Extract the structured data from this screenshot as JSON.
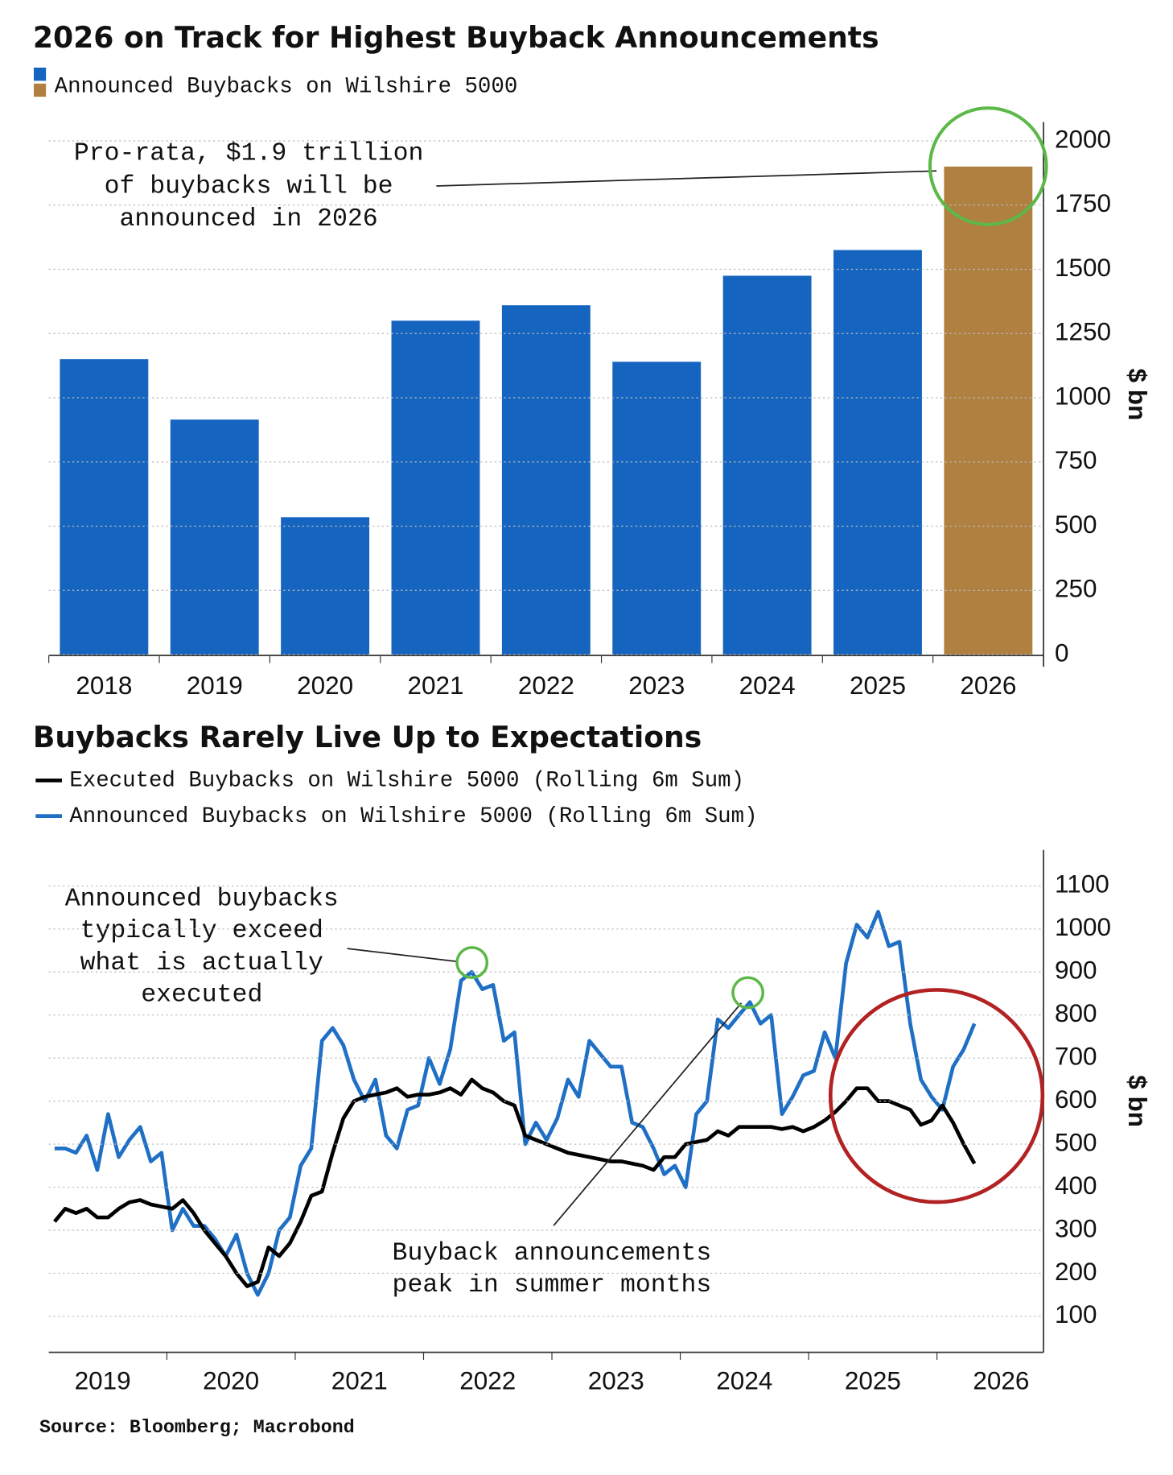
{
  "chart_data": [
    {
      "type": "bar",
      "title": "2026 on Track for Highest Buyback Announcements",
      "categories": [
        "2018",
        "2019",
        "2020",
        "2021",
        "2022",
        "2023",
        "2024",
        "2025",
        "2026"
      ],
      "series": [
        {
          "name": "Announced Buybacks on Wilshire 5000",
          "values": [
            1150,
            915,
            535,
            1300,
            1360,
            1140,
            1475,
            1575,
            1900
          ],
          "colors": [
            "#1565c0",
            "#1565c0",
            "#1565c0",
            "#1565c0",
            "#1565c0",
            "#1565c0",
            "#1565c0",
            "#1565c0",
            "#b08040"
          ]
        }
      ],
      "ylim": [
        0,
        2000
      ],
      "yticks": [
        0,
        250,
        500,
        750,
        1000,
        1250,
        1500,
        1750,
        2000
      ],
      "grid": true,
      "ylabel": "$ bn",
      "annotation": [
        "Pro-rata, $1.9 trillion",
        "of buybacks will be",
        "announced in 2026"
      ]
    },
    {
      "type": "line",
      "title": "Buybacks Rarely Live Up to Expectations",
      "x": [
        2019.125,
        2019.208,
        2019.292,
        2019.375,
        2019.458,
        2019.542,
        2019.625,
        2019.708,
        2019.792,
        2019.875,
        2019.958,
        2020.042,
        2020.125,
        2020.208,
        2020.292,
        2020.375,
        2020.458,
        2020.542,
        2020.625,
        2020.708,
        2020.792,
        2020.875,
        2020.958,
        2021.042,
        2021.125,
        2021.208,
        2021.292,
        2021.375,
        2021.458,
        2021.542,
        2021.625,
        2021.708,
        2021.792,
        2021.875,
        2021.958,
        2022.042,
        2022.125,
        2022.208,
        2022.292,
        2022.375,
        2022.458,
        2022.542,
        2022.625,
        2022.708,
        2022.792,
        2022.875,
        2022.958,
        2023.042,
        2023.125,
        2023.208,
        2023.292,
        2023.375,
        2023.458,
        2023.542,
        2023.625,
        2023.708,
        2023.792,
        2023.875,
        2023.958,
        2024.042,
        2024.125,
        2024.208,
        2024.292,
        2024.375,
        2024.458,
        2024.542,
        2024.625,
        2024.708,
        2024.792,
        2024.875,
        2024.958,
        2025.042,
        2025.125,
        2025.208,
        2025.292,
        2025.375,
        2025.458,
        2025.542,
        2025.625,
        2025.708,
        2025.792,
        2025.875,
        2025.958,
        2026.042,
        2026.125,
        2026.208,
        2026.292
      ],
      "series": [
        {
          "name": "Executed Buybacks on Wilshire 5000 (Rolling 6m Sum)",
          "color": "#000000",
          "values": [
            320,
            350,
            340,
            350,
            330,
            330,
            350,
            365,
            370,
            360,
            355,
            350,
            370,
            340,
            300,
            270,
            240,
            200,
            170,
            180,
            260,
            240,
            270,
            320,
            380,
            390,
            480,
            560,
            600,
            610,
            615,
            620,
            630,
            610,
            615,
            615,
            620,
            630,
            615,
            650,
            630,
            620,
            600,
            590,
            520,
            510,
            500,
            490,
            480,
            475,
            470,
            465,
            460,
            460,
            455,
            450,
            440,
            470,
            470,
            500,
            505,
            510,
            530,
            520,
            540,
            540,
            540,
            540,
            535,
            540,
            530,
            540,
            555,
            575,
            600,
            630,
            630,
            600,
            600,
            590,
            580,
            545,
            555,
            590,
            550,
            500,
            455
          ]
        },
        {
          "name": "Announced Buybacks on Wilshire 5000 (Rolling 6m Sum)",
          "color": "#1f6fc5",
          "values": [
            490,
            490,
            480,
            520,
            440,
            570,
            470,
            510,
            540,
            460,
            480,
            300,
            350,
            310,
            310,
            280,
            240,
            290,
            200,
            150,
            200,
            300,
            330,
            450,
            490,
            740,
            770,
            730,
            650,
            600,
            650,
            520,
            490,
            580,
            590,
            700,
            640,
            720,
            880,
            900,
            860,
            870,
            740,
            760,
            500,
            550,
            510,
            560,
            650,
            610,
            740,
            710,
            680,
            680,
            550,
            540,
            490,
            430,
            450,
            400,
            570,
            600,
            790,
            770,
            800,
            830,
            780,
            800,
            570,
            610,
            660,
            670,
            760,
            700,
            920,
            1010,
            980,
            1040,
            960,
            970,
            780,
            650,
            610,
            580,
            680,
            720,
            780
          ]
        }
      ],
      "xlim": [
        2019.08,
        2026.83
      ],
      "xticks": [
        {
          "value": 2019,
          "label": "2019"
        },
        {
          "value": 2020,
          "label": "2020"
        },
        {
          "value": 2021,
          "label": "2021"
        },
        {
          "value": 2022,
          "label": "2022"
        },
        {
          "value": 2023,
          "label": "2023"
        },
        {
          "value": 2024,
          "label": "2024"
        },
        {
          "value": 2025,
          "label": "2025"
        },
        {
          "value": 2026,
          "label": "2026"
        }
      ],
      "ylim": [
        60,
        1140
      ],
      "yticks": [
        100,
        200,
        300,
        400,
        500,
        600,
        700,
        800,
        900,
        1000,
        1100
      ],
      "grid": true,
      "ylabel": "$ bn",
      "annotations": [
        [
          "Announced buybacks",
          "typically exceed",
          "what is actually",
          "executed"
        ],
        [
          "Buyback announcements",
          "peak in summer months"
        ]
      ]
    }
  ],
  "source": "Source: Bloomberg; Macrobond"
}
